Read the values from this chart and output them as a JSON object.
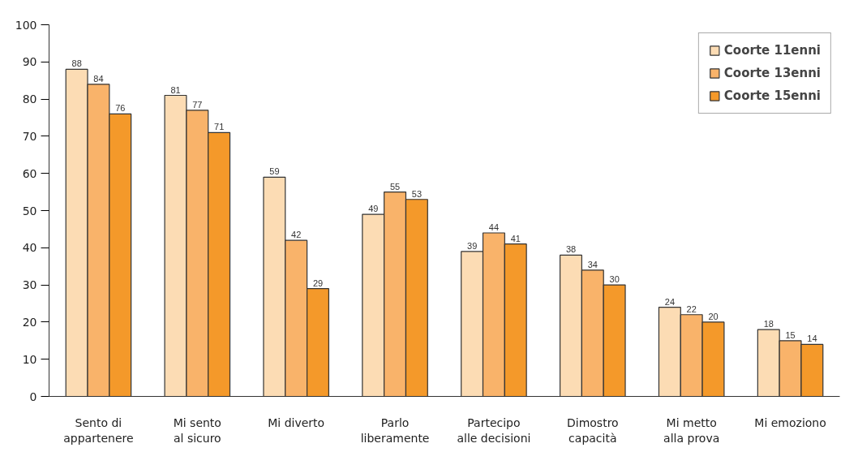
{
  "chart_data": {
    "type": "bar",
    "categories": [
      "Sento di\nappartenere",
      "Mi sento\nal sicuro",
      "Mi diverto",
      "Parlo\nliberamente",
      "Partecipo\nalle decisioni",
      "Dimostro\ncapacità",
      "Mi metto\nalla prova",
      "Mi emoziono"
    ],
    "series": [
      {
        "name": "Coorte 11enni",
        "color": "#fcdcb4",
        "values": [
          88,
          81,
          59,
          49,
          39,
          38,
          24,
          18
        ]
      },
      {
        "name": "Coorte 13enni",
        "color": "#f9b36a",
        "values": [
          84,
          77,
          42,
          55,
          44,
          34,
          22,
          15
        ]
      },
      {
        "name": "Coorte 15enni",
        "color": "#f4992a",
        "values": [
          76,
          71,
          29,
          53,
          41,
          30,
          20,
          14
        ]
      }
    ],
    "ylim": [
      0,
      100
    ],
    "yticks": [
      0,
      10,
      20,
      30,
      40,
      50,
      60,
      70,
      80,
      90,
      100
    ],
    "grid": false,
    "legend": "top right",
    "data_labels": true
  }
}
